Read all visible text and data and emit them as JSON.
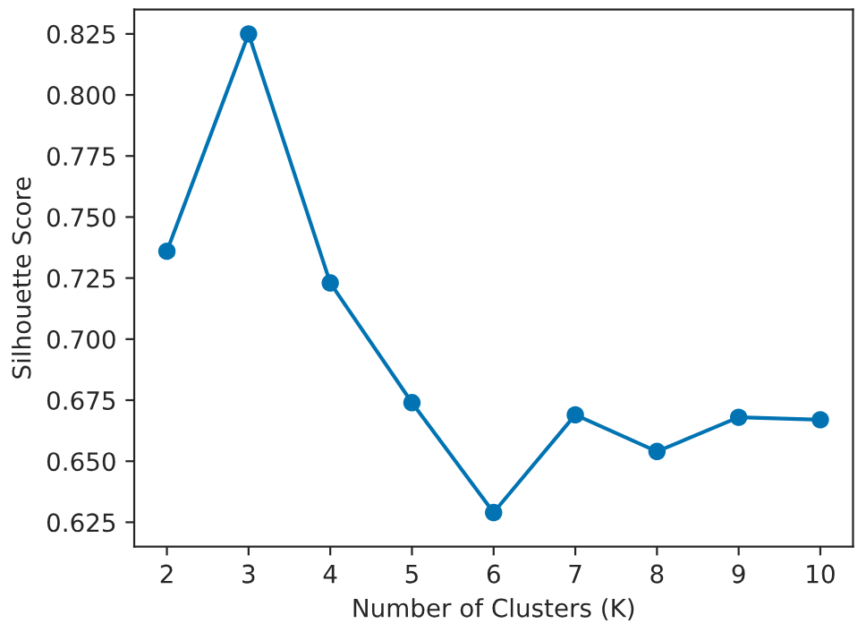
{
  "chart_data": {
    "type": "line",
    "xlabel": "Number of Clusters (K)",
    "ylabel": "Silhouette Score",
    "x": [
      2,
      3,
      4,
      5,
      6,
      7,
      8,
      9,
      10
    ],
    "series": [
      {
        "color": "#0173b2",
        "values": [
          0.736,
          0.825,
          0.723,
          0.674,
          0.629,
          0.669,
          0.654,
          0.668,
          0.667
        ]
      }
    ],
    "xlim": [
      1.6,
      10.4
    ],
    "xticks": [
      2,
      3,
      4,
      5,
      6,
      7,
      8,
      9,
      10
    ],
    "ylim": [
      0.615,
      0.835
    ],
    "yticks": [
      {
        "value": 0.625,
        "label": "0.625"
      },
      {
        "value": 0.65,
        "label": "0.650"
      },
      {
        "value": 0.675,
        "label": "0.675"
      },
      {
        "value": 0.7,
        "label": "0.700"
      },
      {
        "value": 0.725,
        "label": "0.725"
      },
      {
        "value": 0.75,
        "label": "0.750"
      },
      {
        "value": 0.775,
        "label": "0.775"
      },
      {
        "value": 0.8,
        "label": "0.800"
      },
      {
        "value": 0.825,
        "label": "0.825"
      }
    ],
    "marker": "circle",
    "line_style": "solid",
    "grid": false,
    "legend": false
  }
}
